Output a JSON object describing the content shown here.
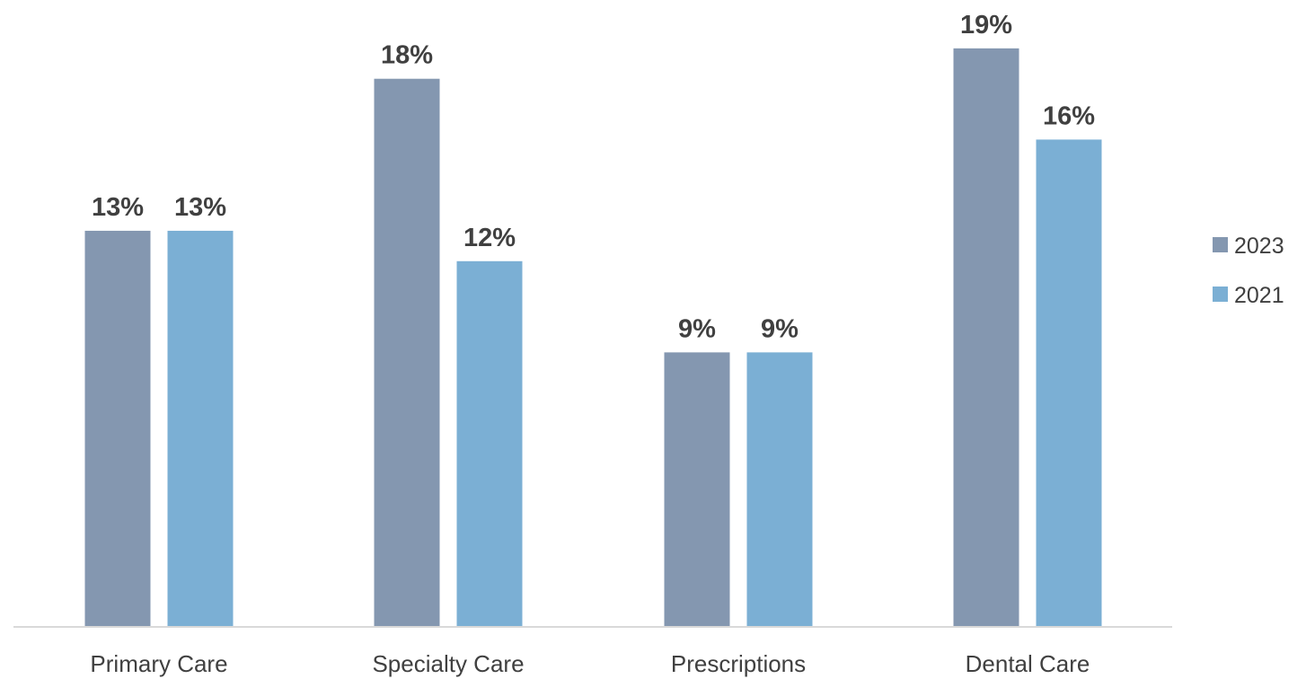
{
  "chart_data": {
    "type": "bar",
    "categories": [
      "Primary Care",
      "Specialty Care",
      "Prescriptions",
      "Dental Care"
    ],
    "series": [
      {
        "name": "2023",
        "values": [
          13,
          18,
          9,
          19
        ],
        "labels": [
          "13%",
          "18%",
          "9%",
          "19%"
        ],
        "color": "#8497B0"
      },
      {
        "name": "2021",
        "values": [
          13,
          12,
          9,
          16
        ],
        "labels": [
          "13%",
          "12%",
          "9%",
          "16%"
        ],
        "color": "#7BAFD4"
      }
    ],
    "value_unit": "%",
    "ylim": [
      0,
      20
    ],
    "grid": false,
    "legend_position": "right",
    "axis_color": "#D9D9D9"
  }
}
